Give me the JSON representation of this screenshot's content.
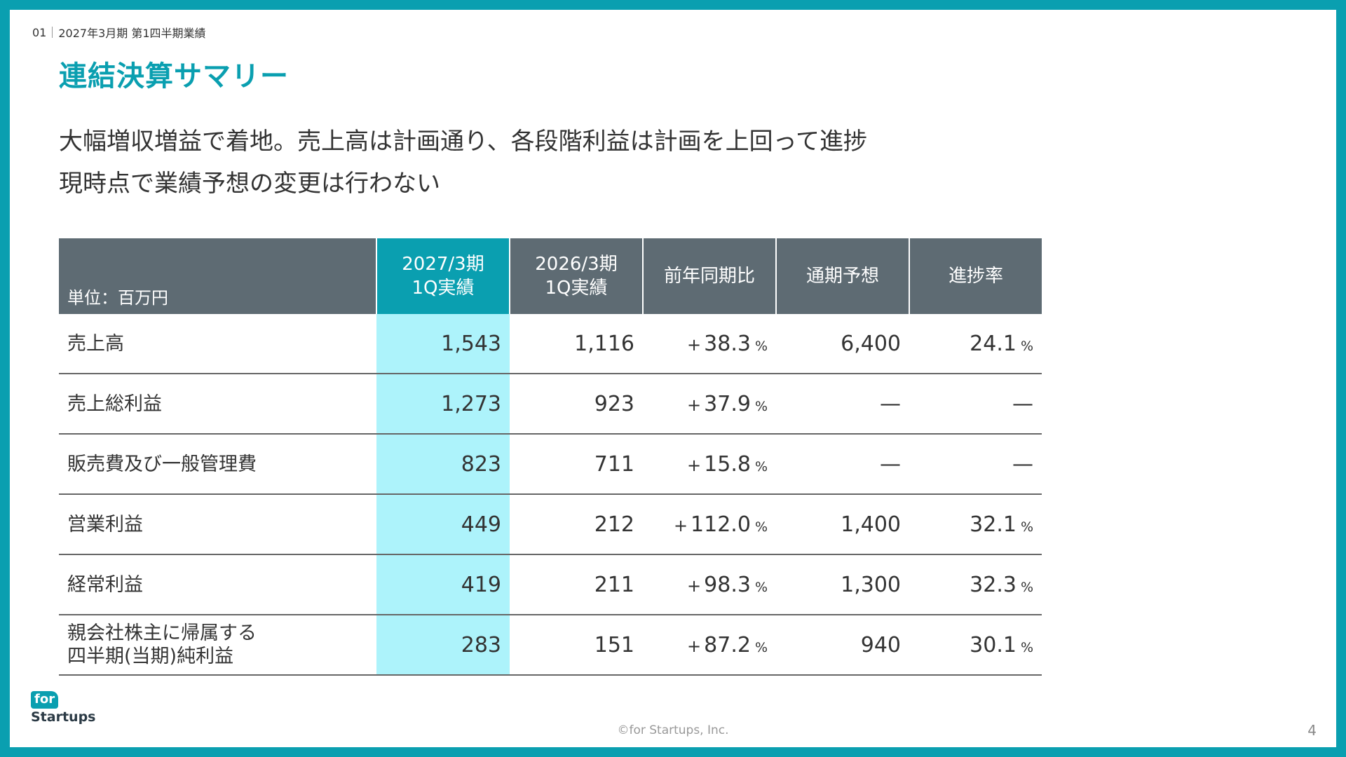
{
  "breadcrumb": {
    "section": "01",
    "period": "2027年3月期 第1四半期業績"
  },
  "title": "連結決算サマリー",
  "lead": {
    "line1": "大幅増収増益で着地。売上高は計画通り、各段階利益は計画を上回って進捗",
    "line2": "現時点で業績予想の変更は行わない"
  },
  "table": {
    "unit": "単位：百万円",
    "headers": {
      "current": [
        "2027/3期",
        "1Q実績"
      ],
      "previous": [
        "2026/3期",
        "1Q実績"
      ],
      "yoy": "前年同期比",
      "forecast": "通期予想",
      "progress": "進捗率"
    },
    "rows": [
      {
        "label": [
          "売上高"
        ],
        "current": "1,543",
        "previous": "1,116",
        "yoy": "38.3",
        "forecast": "6,400",
        "progress": "24.1"
      },
      {
        "label": [
          "売上総利益"
        ],
        "current": "1,273",
        "previous": "923",
        "yoy": "37.9",
        "forecast": "—",
        "progress": "—"
      },
      {
        "label": [
          "販売費及び一般管理費"
        ],
        "current": "823",
        "previous": "711",
        "yoy": "15.8",
        "forecast": "—",
        "progress": "—"
      },
      {
        "label": [
          "営業利益"
        ],
        "current": "449",
        "previous": "212",
        "yoy": "112.0",
        "forecast": "1,400",
        "progress": "32.1"
      },
      {
        "label": [
          "経常利益"
        ],
        "current": "419",
        "previous": "211",
        "yoy": "98.3",
        "forecast": "1,300",
        "progress": "32.3"
      },
      {
        "label": [
          "親会社株主に帰属する",
          "四半期(当期)純利益"
        ],
        "current": "283",
        "previous": "151",
        "yoy": "87.2",
        "forecast": "940",
        "progress": "30.1"
      }
    ],
    "plus_sign": "+",
    "percent_sign": "%"
  },
  "footer": {
    "logo_top": "for",
    "logo_bottom": "Startups",
    "copyright": "©for Startups, Inc.",
    "page_number": "4"
  },
  "colors": {
    "accent": "#0a9fb0",
    "header_bg": "#5e6b73",
    "highlight_col": "#adf3fb"
  }
}
